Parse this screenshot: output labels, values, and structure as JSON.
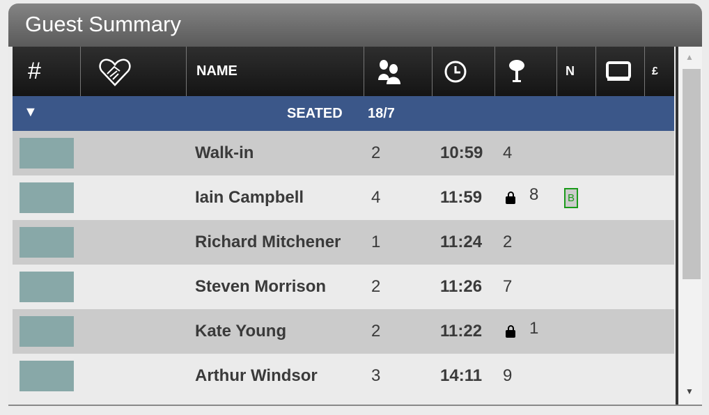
{
  "title": "Guest Summary",
  "header": {
    "hash": "#",
    "name": "NAME",
    "notes": "N",
    "currency": "£"
  },
  "group": {
    "label": "SEATED",
    "count": "18/7"
  },
  "rows": [
    {
      "name": "Walk-in",
      "covers": "2",
      "time": "10:59",
      "table": "4",
      "locked": false,
      "badge": ""
    },
    {
      "name": "Iain Campbell",
      "covers": "4",
      "time": "11:59",
      "table": "8",
      "locked": true,
      "badge": "B"
    },
    {
      "name": "Richard Mitchener",
      "covers": "1",
      "time": "11:24",
      "table": "2",
      "locked": false,
      "badge": ""
    },
    {
      "name": "Steven Morrison",
      "covers": "2",
      "time": "11:26",
      "table": "7",
      "locked": false,
      "badge": ""
    },
    {
      "name": "Kate Young",
      "covers": "2",
      "time": "11:22",
      "table": "1",
      "locked": true,
      "badge": ""
    },
    {
      "name": "Arthur Windsor",
      "covers": "3",
      "time": "14:11",
      "table": "9",
      "locked": false,
      "badge": ""
    }
  ],
  "colors": {
    "group": "#3b5789",
    "swatch": "#88a8a8",
    "badge": "#1a9a1a"
  }
}
